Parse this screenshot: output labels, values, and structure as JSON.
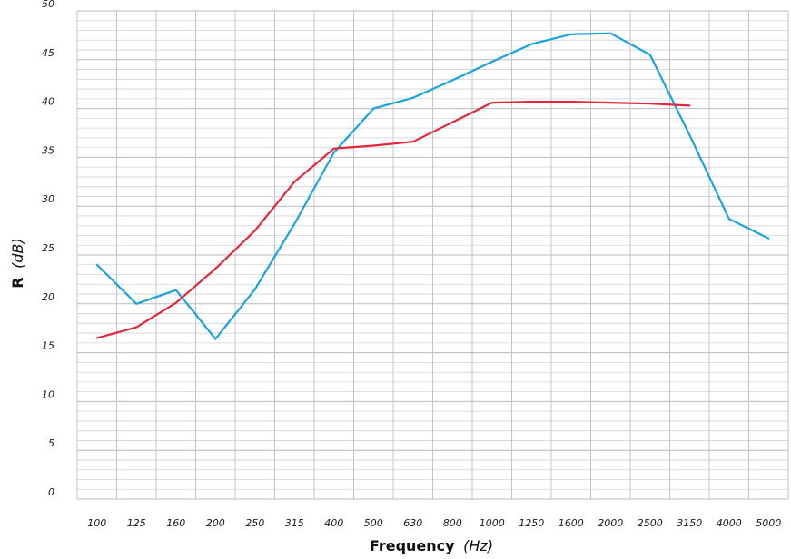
{
  "chart_data": {
    "type": "line",
    "xlabel": "Frequency",
    "xlabel_unit": "(Hz)",
    "ylabel": "R",
    "ylabel_unit": "(dB)",
    "x_tick_labels": [
      "100",
      "125",
      "160",
      "200",
      "250",
      "315",
      "400",
      "500",
      "630",
      "800",
      "1000",
      "1250",
      "1600",
      "2000",
      "2500",
      "3150",
      "4000",
      "5000"
    ],
    "y_ticks": [
      0,
      5,
      10,
      15,
      20,
      25,
      30,
      35,
      40,
      45,
      50
    ],
    "ylim": [
      0,
      50
    ],
    "grid": true,
    "series": [
      {
        "color": "#1aa3dc",
        "points": [
          {
            "x": "100",
            "y": 24.0
          },
          {
            "x": "125",
            "y": 20.0
          },
          {
            "x": "160",
            "y": 21.4
          },
          {
            "x": "200",
            "y": 16.4
          },
          {
            "x": "250",
            "y": 21.5
          },
          {
            "x": "315",
            "y": 28.2
          },
          {
            "x": "400",
            "y": 35.5
          },
          {
            "x": "500",
            "y": 40.0
          },
          {
            "x": "630",
            "y": 41.1
          },
          {
            "x": "800",
            "y": 42.9
          },
          {
            "x": "1000",
            "y": 44.8
          },
          {
            "x": "1250",
            "y": 46.6
          },
          {
            "x": "1600",
            "y": 47.6
          },
          {
            "x": "2000",
            "y": 47.7
          },
          {
            "x": "2500",
            "y": 45.5
          },
          {
            "x": "3150",
            "y": 37.3
          },
          {
            "x": "4000",
            "y": 28.7
          },
          {
            "x": "5000",
            "y": 26.7
          }
        ]
      },
      {
        "color": "#e3263c",
        "points": [
          {
            "x": "100",
            "y": 16.5
          },
          {
            "x": "125",
            "y": 17.6
          },
          {
            "x": "160",
            "y": 20.1
          },
          {
            "x": "200",
            "y": 23.6
          },
          {
            "x": "250",
            "y": 27.5
          },
          {
            "x": "315",
            "y": 32.5
          },
          {
            "x": "400",
            "y": 35.9
          },
          {
            "x": "500",
            "y": 36.2
          },
          {
            "x": "630",
            "y": 36.6
          },
          {
            "x": "800",
            "y": 38.6
          },
          {
            "x": "1000",
            "y": 40.6
          },
          {
            "x": "1250",
            "y": 40.7
          },
          {
            "x": "1600",
            "y": 40.7
          },
          {
            "x": "2000",
            "y": 40.6
          },
          {
            "x": "2500",
            "y": 40.5
          },
          {
            "x": "3150",
            "y": 40.3
          }
        ]
      }
    ]
  }
}
